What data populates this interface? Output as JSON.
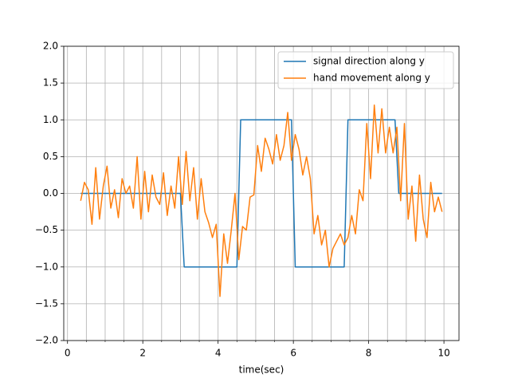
{
  "chart_data": {
    "type": "line",
    "xlabel": "time(sec)",
    "xlim": [
      -0.1,
      10.4
    ],
    "ylim": [
      -2,
      2
    ],
    "xticks": [
      0,
      2,
      4,
      6,
      8,
      10
    ],
    "xminorticks": [
      0.5,
      1,
      1.5,
      2.5,
      3,
      3.5,
      4.5,
      5,
      5.5,
      6.5,
      7,
      7.5,
      8.5,
      9,
      9.5
    ],
    "yticks": [
      {
        "value": -2,
        "label": "−2.0"
      },
      {
        "value": -1.5,
        "label": "−1.5"
      },
      {
        "value": -1,
        "label": "−1.0"
      },
      {
        "value": -0.5,
        "label": "−0.5"
      },
      {
        "value": 0,
        "label": "0.0"
      },
      0.5,
      {
        "value": 1,
        "label": "1.0"
      },
      1.5,
      {
        "value": 2,
        "label": "2.0"
      }
    ],
    "grid": true,
    "legend": "upper right",
    "series": [
      {
        "name": "signal direction along y",
        "color": "#1f77b4",
        "x": [
          0.35,
          3.0,
          3.1,
          4.5,
          4.6,
          5.95,
          6.05,
          7.35,
          7.45,
          8.7,
          8.8,
          9.95
        ],
        "values": [
          0,
          0,
          -1,
          -1,
          1,
          1,
          -1,
          -1,
          1,
          1,
          0,
          0
        ]
      },
      {
        "name": "hand movement along y",
        "color": "#ff7f0e",
        "x": [
          0.35,
          0.45,
          0.55,
          0.65,
          0.75,
          0.85,
          0.95,
          1.05,
          1.15,
          1.25,
          1.35,
          1.45,
          1.55,
          1.65,
          1.75,
          1.85,
          1.95,
          2.05,
          2.15,
          2.25,
          2.35,
          2.45,
          2.55,
          2.65,
          2.75,
          2.85,
          2.95,
          3.05,
          3.15,
          3.25,
          3.35,
          3.45,
          3.55,
          3.65,
          3.75,
          3.85,
          3.95,
          4.05,
          4.15,
          4.25,
          4.35,
          4.45,
          4.55,
          4.65,
          4.75,
          4.85,
          4.95,
          5.05,
          5.15,
          5.25,
          5.35,
          5.45,
          5.55,
          5.65,
          5.75,
          5.85,
          5.95,
          6.05,
          6.15,
          6.25,
          6.35,
          6.45,
          6.55,
          6.65,
          6.75,
          6.85,
          6.95,
          7.05,
          7.15,
          7.25,
          7.35,
          7.45,
          7.55,
          7.65,
          7.75,
          7.85,
          7.95,
          8.05,
          8.15,
          8.25,
          8.35,
          8.45,
          8.55,
          8.65,
          8.75,
          8.85,
          8.95,
          9.05,
          9.15,
          9.25,
          9.35,
          9.45,
          9.55,
          9.65,
          9.75,
          9.85,
          9.95
        ],
        "values": [
          -0.1,
          0.15,
          0.05,
          -0.42,
          0.35,
          -0.35,
          0.1,
          0.37,
          -0.2,
          0.05,
          -0.33,
          0.2,
          0.0,
          0.1,
          -0.2,
          0.5,
          -0.35,
          0.3,
          -0.25,
          0.25,
          -0.05,
          -0.15,
          0.28,
          -0.3,
          0.1,
          -0.2,
          0.5,
          -0.15,
          0.57,
          -0.1,
          0.35,
          -0.35,
          0.2,
          -0.25,
          -0.4,
          -0.6,
          -0.42,
          -1.4,
          -0.55,
          -0.95,
          -0.5,
          0.0,
          -0.9,
          -0.45,
          -0.5,
          -0.05,
          -0.02,
          0.65,
          0.3,
          0.75,
          0.6,
          0.4,
          0.8,
          0.45,
          0.65,
          1.1,
          0.45,
          0.8,
          0.6,
          0.25,
          0.5,
          0.2,
          -0.55,
          -0.3,
          -0.7,
          -0.5,
          -1.0,
          -0.75,
          -0.65,
          -0.55,
          -0.7,
          -0.6,
          -0.3,
          -0.55,
          0.05,
          -0.1,
          0.95,
          0.2,
          1.2,
          0.55,
          1.15,
          0.55,
          0.9,
          0.55,
          0.9,
          -0.1,
          0.95,
          -0.35,
          0.1,
          -0.65,
          0.25,
          -0.35,
          -0.6,
          0.15,
          -0.25,
          -0.05,
          -0.25
        ]
      }
    ]
  }
}
